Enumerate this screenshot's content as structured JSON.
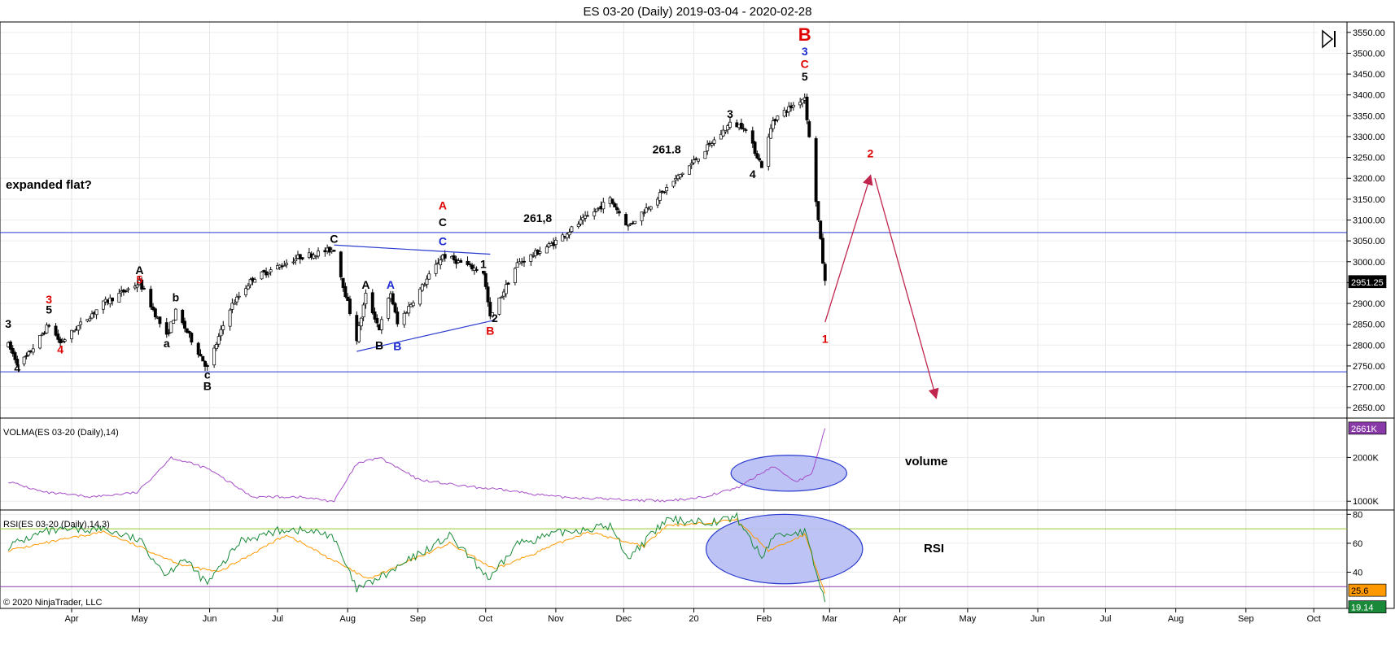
{
  "title": "ES 03-20 (Daily)  2019-03-04 - 2020-02-28",
  "copyright": "© 2020 NinjaTrader, LLC",
  "toolbar_icon": "play-bar-icon",
  "colors": {
    "candle_up": "#ffffff",
    "candle_down": "#000000",
    "volma_line": "#a64ec9",
    "rsi_line": "#1a8a3a",
    "rsi_avg": "#ff9900",
    "wave_red": "#e00000",
    "wave_blue": "#1c2bd1",
    "wave_black": "#000000",
    "arrow": "#c0264d",
    "hline": "#2a3bd0",
    "ellipse_fill": "#b7bdf4"
  },
  "chart_data": [
    {
      "type": "candlestick",
      "panel": "price",
      "x_start": "2019-03-04",
      "x_end": "2020-02-28",
      "months": [
        "Apr",
        "May",
        "Jun",
        "Jul",
        "Aug",
        "Sep",
        "Oct",
        "Nov",
        "Dec",
        "20",
        "Feb",
        "Mar",
        "Apr",
        "May",
        "Jun",
        "Jul",
        "Aug",
        "Sep",
        "Oct"
      ],
      "y_ticks": [
        "3550.00",
        "3500.00",
        "3450.00",
        "3400.00",
        "3350.00",
        "3300.00",
        "3250.00",
        "3200.00",
        "3150.00",
        "3100.00",
        "3050.00",
        "3000.00",
        "2950.00",
        "2900.00",
        "2850.00",
        "2800.00",
        "2750.00",
        "2700.00",
        "2650.00"
      ],
      "ylim": [
        2625,
        3575
      ],
      "last_price": "2951.25",
      "horizontal_lines": [
        3070,
        2736
      ],
      "path": [
        [
          "2019-03-04",
          2800
        ],
        [
          "2019-03-08",
          2758
        ],
        [
          "2019-03-12",
          2770
        ],
        [
          "2019-03-22",
          2850
        ],
        [
          "2019-03-27",
          2805
        ],
        [
          "2019-04-15",
          2900
        ],
        [
          "2019-05-01",
          2950
        ],
        [
          "2019-05-13",
          2820
        ],
        [
          "2019-05-17",
          2880
        ],
        [
          "2019-05-31",
          2745
        ],
        [
          "2019-06-10",
          2890
        ],
        [
          "2019-06-20",
          2960
        ],
        [
          "2019-07-10",
          3010
        ],
        [
          "2019-07-26",
          3030
        ],
        [
          "2019-08-05",
          2815
        ],
        [
          "2019-08-09",
          2920
        ],
        [
          "2019-08-15",
          2840
        ],
        [
          "2019-08-20",
          2925
        ],
        [
          "2019-08-23",
          2850
        ],
        [
          "2019-09-12",
          3015
        ],
        [
          "2019-09-30",
          2975
        ],
        [
          "2019-10-03",
          2865
        ],
        [
          "2019-10-15",
          2995
        ],
        [
          "2019-10-31",
          3045
        ],
        [
          "2019-11-25",
          3150
        ],
        [
          "2019-12-03",
          3085
        ],
        [
          "2019-12-31",
          3235
        ],
        [
          "2020-01-17",
          3330
        ],
        [
          "2020-01-23",
          3325
        ],
        [
          "2020-01-31",
          3230
        ],
        [
          "2020-02-05",
          3340
        ],
        [
          "2020-02-19",
          3395
        ],
        [
          "2020-02-28",
          2950
        ]
      ],
      "waves": [
        {
          "text": "3",
          "date": "2019-03-04",
          "price": 2842,
          "color": "black"
        },
        {
          "text": "4",
          "date": "2019-03-08",
          "price": 2735,
          "color": "black"
        },
        {
          "text": "3",
          "date": "2019-03-22",
          "price": 2900,
          "color": "red"
        },
        {
          "text": "5",
          "date": "2019-03-22",
          "price": 2876,
          "color": "black"
        },
        {
          "text": "4",
          "date": "2019-03-27",
          "price": 2780,
          "color": "red"
        },
        {
          "text": "A",
          "date": "2019-05-01",
          "price": 2970,
          "color": "black"
        },
        {
          "text": "5",
          "date": "2019-05-01",
          "price": 2948,
          "color": "red"
        },
        {
          "text": "b",
          "date": "2019-05-17",
          "price": 2905,
          "color": "black"
        },
        {
          "text": "a",
          "date": "2019-05-13",
          "price": 2795,
          "color": "black"
        },
        {
          "text": "c",
          "date": "2019-05-31",
          "price": 2720,
          "color": "black"
        },
        {
          "text": "B",
          "date": "2019-05-31",
          "price": 2692,
          "color": "black"
        },
        {
          "text": "C",
          "date": "2019-07-26",
          "price": 3045,
          "color": "black"
        },
        {
          "text": "A",
          "date": "2019-08-09",
          "price": 2935,
          "color": "black"
        },
        {
          "text": "A",
          "date": "2019-08-20",
          "price": 2935,
          "color": "blue"
        },
        {
          "text": "B",
          "date": "2019-08-15",
          "price": 2790,
          "color": "black"
        },
        {
          "text": "B",
          "date": "2019-08-23",
          "price": 2788,
          "color": "blue"
        },
        {
          "text": "A",
          "date": "2019-09-12",
          "price": 3125,
          "color": "red"
        },
        {
          "text": "C",
          "date": "2019-09-12",
          "price": 3085,
          "color": "black"
        },
        {
          "text": "C",
          "date": "2019-09-12",
          "price": 3040,
          "color": "blue"
        },
        {
          "text": "1",
          "date": "2019-09-30",
          "price": 2985,
          "color": "black"
        },
        {
          "text": "2",
          "date": "2019-10-05",
          "price": 2855,
          "color": "black"
        },
        {
          "text": "B",
          "date": "2019-10-03",
          "price": 2825,
          "color": "red"
        },
        {
          "text": "261,8",
          "date": "2019-10-24",
          "price": 3095,
          "color": "black"
        },
        {
          "text": "261.8",
          "date": "2019-12-20",
          "price": 3260,
          "color": "black"
        },
        {
          "text": "3",
          "date": "2020-01-17",
          "price": 3345,
          "color": "black"
        },
        {
          "text": "4",
          "date": "2020-01-27",
          "price": 3200,
          "color": "black"
        },
        {
          "text": "B",
          "date": "2020-02-19",
          "price": 3530,
          "color": "red"
        },
        {
          "text": "3",
          "date": "2020-02-19",
          "price": 3495,
          "color": "blue"
        },
        {
          "text": "C",
          "date": "2020-02-19",
          "price": 3465,
          "color": "red"
        },
        {
          "text": "5",
          "date": "2020-02-19",
          "price": 3435,
          "color": "black"
        },
        {
          "text": "1",
          "date": "2020-02-28",
          "price": 2805,
          "color": "red"
        },
        {
          "text": "2",
          "date": "2020-03-19",
          "price": 3250,
          "color": "red"
        }
      ],
      "annotations": [
        "expanded flat?"
      ],
      "triangle_lines": [
        [
          [
            "2019-07-26",
            3040
          ],
          [
            "2019-10-03",
            3018
          ]
        ],
        [
          [
            "2019-08-05",
            2785
          ],
          [
            "2019-10-05",
            2860
          ]
        ]
      ],
      "arrows": [
        [
          [
            "2020-02-28",
            2855
          ],
          [
            "2020-03-19",
            3205
          ]
        ],
        [
          [
            "2020-03-21",
            3200
          ],
          [
            "2020-04-17",
            2675
          ]
        ]
      ]
    },
    {
      "type": "line",
      "panel": "volume",
      "label": "VOLMA(ES 03-20 (Daily),14)",
      "y_ticks": [
        "2000K",
        "1000K"
      ],
      "ylim": [
        800,
        2900
      ],
      "last_value": "2661K",
      "annotation": "volume",
      "points": [
        [
          "2019-03-04",
          1450
        ],
        [
          "2019-03-20",
          1200
        ],
        [
          "2019-04-10",
          1100
        ],
        [
          "2019-04-30",
          1200
        ],
        [
          "2019-05-15",
          2000
        ],
        [
          "2019-05-31",
          1750
        ],
        [
          "2019-06-20",
          1100
        ],
        [
          "2019-07-10",
          1100
        ],
        [
          "2019-07-26",
          1000
        ],
        [
          "2019-08-05",
          1850
        ],
        [
          "2019-08-15",
          2000
        ],
        [
          "2019-09-01",
          1500
        ],
        [
          "2019-09-20",
          1350
        ],
        [
          "2019-10-10",
          1250
        ],
        [
          "2019-11-01",
          1100
        ],
        [
          "2019-11-25",
          1050
        ],
        [
          "2019-12-20",
          1000
        ],
        [
          "2020-01-05",
          1100
        ],
        [
          "2020-01-20",
          1300
        ],
        [
          "2020-02-05",
          1800
        ],
        [
          "2020-02-15",
          1450
        ],
        [
          "2020-02-22",
          1600
        ],
        [
          "2020-02-28",
          2661
        ]
      ],
      "ellipse": {
        "center": [
          "2020-02-12",
          1640
        ],
        "spans_days": 44,
        "spans_value": 820
      }
    },
    {
      "type": "line",
      "panel": "rsi",
      "label": "RSI(ES 03-20 (Daily),14,3)",
      "y_ticks": [
        "80",
        "60",
        "40"
      ],
      "ylim": [
        15,
        83
      ],
      "levels": [
        70,
        30
      ],
      "last_values": [
        "25.6",
        "19.14"
      ],
      "annotation": "RSI",
      "points": [
        [
          "2019-03-04",
          58
        ],
        [
          "2019-03-20",
          68
        ],
        [
          "2019-04-15",
          70
        ],
        [
          "2019-05-01",
          62
        ],
        [
          "2019-05-13",
          38
        ],
        [
          "2019-05-20",
          50
        ],
        [
          "2019-05-31",
          32
        ],
        [
          "2019-06-15",
          62
        ],
        [
          "2019-07-05",
          70
        ],
        [
          "2019-07-25",
          66
        ],
        [
          "2019-08-05",
          28
        ],
        [
          "2019-08-20",
          40
        ],
        [
          "2019-09-01",
          52
        ],
        [
          "2019-09-15",
          65
        ],
        [
          "2019-10-03",
          35
        ],
        [
          "2019-10-15",
          60
        ],
        [
          "2019-11-05",
          68
        ],
        [
          "2019-11-25",
          72
        ],
        [
          "2019-12-03",
          50
        ],
        [
          "2019-12-20",
          76
        ],
        [
          "2020-01-10",
          75
        ],
        [
          "2020-01-20",
          78
        ],
        [
          "2020-01-31",
          50
        ],
        [
          "2020-02-05",
          65
        ],
        [
          "2020-02-19",
          68
        ],
        [
          "2020-02-28",
          19
        ]
      ],
      "avg_points": [
        [
          "2019-03-04",
          55
        ],
        [
          "2019-04-15",
          68
        ],
        [
          "2019-05-20",
          45
        ],
        [
          "2019-06-05",
          40
        ],
        [
          "2019-07-05",
          66
        ],
        [
          "2019-08-10",
          35
        ],
        [
          "2019-09-15",
          60
        ],
        [
          "2019-10-05",
          42
        ],
        [
          "2019-11-15",
          68
        ],
        [
          "2019-12-10",
          58
        ],
        [
          "2019-12-20",
          72
        ],
        [
          "2020-01-20",
          76
        ],
        [
          "2020-02-03",
          55
        ],
        [
          "2020-02-19",
          66
        ],
        [
          "2020-02-28",
          25
        ]
      ],
      "ellipse": {
        "center": [
          "2020-02-10",
          56
        ],
        "spans_days": 62,
        "spans_value": 48
      }
    }
  ]
}
